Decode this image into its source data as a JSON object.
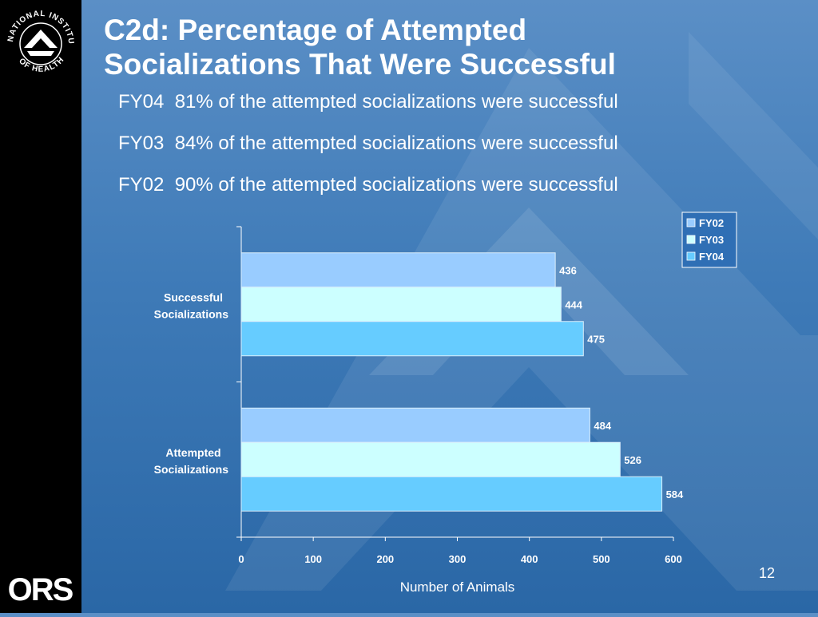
{
  "logos": {
    "nih_seal_text": "NATIONAL INSTITUTES OF HEALTH",
    "ors_text": "ORS"
  },
  "slide": {
    "title_line1": "C2d: Percentage of Attempted",
    "title_line2": "Socializations That Were Successful",
    "bullets": [
      "FY04  81% of the attempted socializations were successful",
      "FY03  84% of the attempted socializations were successful",
      "FY02  90% of the attempted socializations were successful"
    ],
    "slide_number": "12"
  },
  "colors": {
    "background_top": "#5b8fc6",
    "background_bottom": "#2a67a6",
    "sidebar": "#000000",
    "FY02": "#99ccff",
    "FY03": "#ccffff",
    "FY04": "#66ccff",
    "legend_bg": "#2f6fb5"
  },
  "chart_data": {
    "type": "bar",
    "orientation": "horizontal",
    "categories": [
      "Successful Socializations",
      "Attempted Socializations"
    ],
    "category_lines": [
      [
        "Successful",
        "Socializations"
      ],
      [
        "Attempted",
        "Socializations"
      ]
    ],
    "series": [
      {
        "name": "FY02",
        "values": [
          436,
          484
        ]
      },
      {
        "name": "FY03",
        "values": [
          444,
          526
        ]
      },
      {
        "name": "FY04",
        "values": [
          475,
          584
        ]
      }
    ],
    "xlabel": "Number of Animals",
    "ylabel": "",
    "xlim": [
      0,
      600
    ],
    "xticks": [
      0,
      100,
      200,
      300,
      400,
      500,
      600
    ],
    "data_labels": true,
    "grid": false,
    "legend": "top-right"
  }
}
